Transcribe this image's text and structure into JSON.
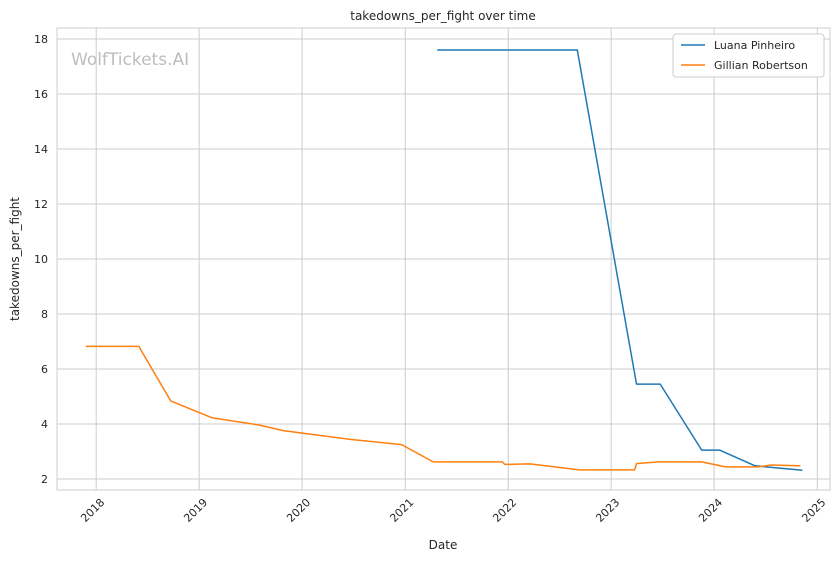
{
  "chart_data": {
    "type": "line",
    "title": "takedowns_per_fight over time",
    "xlabel": "Date",
    "ylabel": "takedowns_per_fight",
    "watermark": "WolfTickets.AI",
    "x_ticks": [
      "2018",
      "2019",
      "2020",
      "2021",
      "2022",
      "2023",
      "2024",
      "2025"
    ],
    "y_ticks": [
      "2",
      "4",
      "6",
      "8",
      "10",
      "12",
      "14",
      "16",
      "18"
    ],
    "xlim": [
      "2017-08-15",
      "2025-02-15"
    ],
    "ylim": [
      1.6,
      18.4
    ],
    "grid": true,
    "legend_position": "top-right",
    "series": [
      {
        "name": "Luana Pinheiro",
        "color": "#1f77b4",
        "points": [
          [
            "2021-04-24",
            17.6
          ],
          [
            "2022-09-03",
            17.6
          ],
          [
            "2023-04-01",
            5.45
          ],
          [
            "2023-06-24",
            5.45
          ],
          [
            "2023-11-18",
            3.05
          ],
          [
            "2024-01-20",
            3.05
          ],
          [
            "2024-05-25",
            2.48
          ],
          [
            "2024-11-09",
            2.32
          ]
        ]
      },
      {
        "name": "Gillian Robertson",
        "color": "#ff7f0e",
        "points": [
          [
            "2017-11-25",
            6.82
          ],
          [
            "2018-06-01",
            6.82
          ],
          [
            "2018-09-22",
            4.84
          ],
          [
            "2019-02-17",
            4.22
          ],
          [
            "2019-08-03",
            3.96
          ],
          [
            "2019-10-26",
            3.76
          ],
          [
            "2020-06-20",
            3.44
          ],
          [
            "2020-12-19",
            3.25
          ],
          [
            "2021-04-10",
            2.62
          ],
          [
            "2021-12-11",
            2.62
          ],
          [
            "2021-12-20",
            2.53
          ],
          [
            "2022-03-19",
            2.55
          ],
          [
            "2022-09-10",
            2.33
          ],
          [
            "2023-03-25",
            2.33
          ],
          [
            "2023-04-01",
            2.56
          ],
          [
            "2023-06-17",
            2.62
          ],
          [
            "2023-11-18",
            2.62
          ],
          [
            "2024-02-10",
            2.44
          ],
          [
            "2024-06-08",
            2.44
          ],
          [
            "2024-07-20",
            2.51
          ],
          [
            "2024-11-02",
            2.48
          ]
        ]
      }
    ]
  }
}
